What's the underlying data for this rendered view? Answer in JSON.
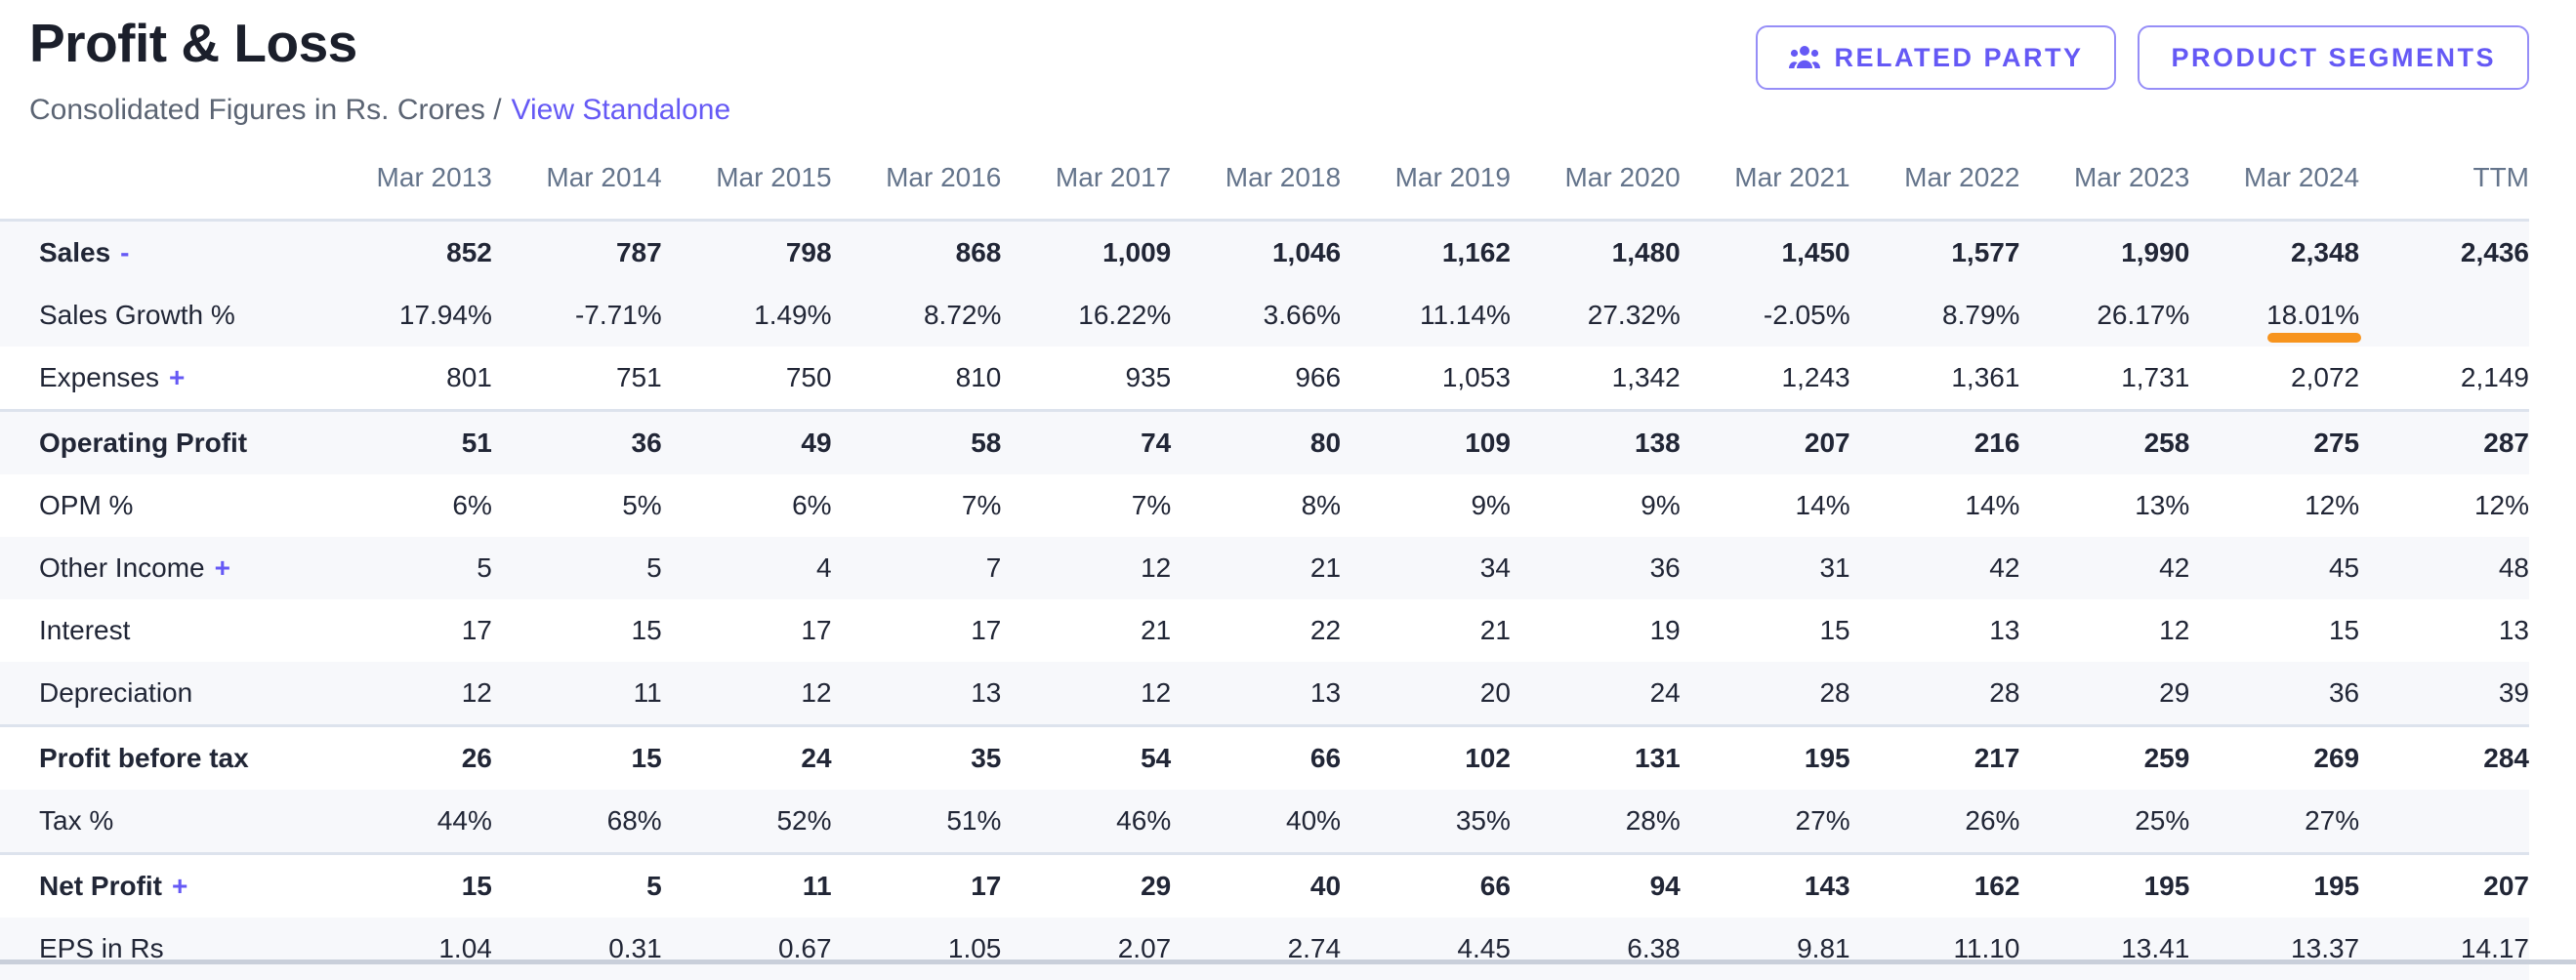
{
  "page": {
    "title": "Profit & Loss",
    "subtitle_prefix": "Consolidated Figures in Rs. Crores /",
    "standalone_link": "View Standalone"
  },
  "buttons": {
    "related_party": "RELATED PARTY",
    "product_segments": "PRODUCT SEGMENTS"
  },
  "icons": {
    "related_party_icon": "users-group-icon"
  },
  "colors": {
    "accent_purple": "#6559f5",
    "orange_underline": "#f7941e",
    "stripe_bg": "#f7f8fb",
    "separator": "#dde3ed",
    "header_text": "#64748b",
    "body_text": "#212636"
  },
  "table": {
    "columns": [
      "Mar 2013",
      "Mar 2014",
      "Mar 2015",
      "Mar 2016",
      "Mar 2017",
      "Mar 2018",
      "Mar 2019",
      "Mar 2020",
      "Mar 2021",
      "Mar 2022",
      "Mar 2023",
      "Mar 2024",
      "TTM"
    ],
    "rows": [
      {
        "label": "Sales",
        "toggle": "-",
        "bold": true,
        "stripe": true,
        "values": [
          "852",
          "787",
          "798",
          "868",
          "1,009",
          "1,046",
          "1,162",
          "1,480",
          "1,450",
          "1,577",
          "1,990",
          "2,348",
          "2,436"
        ]
      },
      {
        "label": "Sales Growth %",
        "stripe": true,
        "underline_col": 11,
        "values": [
          "17.94%",
          "-7.71%",
          "1.49%",
          "8.72%",
          "16.22%",
          "3.66%",
          "11.14%",
          "27.32%",
          "-2.05%",
          "8.79%",
          "26.17%",
          "18.01%",
          ""
        ]
      },
      {
        "label": "Expenses",
        "toggle": "+",
        "values": [
          "801",
          "751",
          "750",
          "810",
          "935",
          "966",
          "1,053",
          "1,342",
          "1,243",
          "1,361",
          "1,731",
          "2,072",
          "2,149"
        ]
      },
      {
        "label": "Operating Profit",
        "bold": true,
        "stripe": true,
        "group_start": true,
        "values": [
          "51",
          "36",
          "49",
          "58",
          "74",
          "80",
          "109",
          "138",
          "207",
          "216",
          "258",
          "275",
          "287"
        ]
      },
      {
        "label": "OPM %",
        "values": [
          "6%",
          "5%",
          "6%",
          "7%",
          "7%",
          "8%",
          "9%",
          "9%",
          "14%",
          "14%",
          "13%",
          "12%",
          "12%"
        ]
      },
      {
        "label": "Other Income",
        "toggle": "+",
        "stripe": true,
        "values": [
          "5",
          "5",
          "4",
          "7",
          "12",
          "21",
          "34",
          "36",
          "31",
          "42",
          "42",
          "45",
          "48"
        ]
      },
      {
        "label": "Interest",
        "values": [
          "17",
          "15",
          "17",
          "17",
          "21",
          "22",
          "21",
          "19",
          "15",
          "13",
          "12",
          "15",
          "13"
        ]
      },
      {
        "label": "Depreciation",
        "stripe": true,
        "values": [
          "12",
          "11",
          "12",
          "13",
          "12",
          "13",
          "20",
          "24",
          "28",
          "28",
          "29",
          "36",
          "39"
        ]
      },
      {
        "label": "Profit before tax",
        "bold": true,
        "group_start": true,
        "values": [
          "26",
          "15",
          "24",
          "35",
          "54",
          "66",
          "102",
          "131",
          "195",
          "217",
          "259",
          "269",
          "284"
        ]
      },
      {
        "label": "Tax %",
        "stripe": true,
        "values": [
          "44%",
          "68%",
          "52%",
          "51%",
          "46%",
          "40%",
          "35%",
          "28%",
          "27%",
          "26%",
          "25%",
          "27%",
          ""
        ]
      },
      {
        "label": "Net Profit",
        "toggle": "+",
        "bold": true,
        "group_start": true,
        "values": [
          "15",
          "5",
          "11",
          "17",
          "29",
          "40",
          "66",
          "94",
          "143",
          "162",
          "195",
          "195",
          "207"
        ]
      },
      {
        "label": "EPS in Rs",
        "stripe": true,
        "values": [
          "1.04",
          "0.31",
          "0.67",
          "1.05",
          "2.07",
          "2.74",
          "4.45",
          "6.38",
          "9.81",
          "11.10",
          "13.41",
          "13.37",
          "14.17"
        ]
      }
    ]
  }
}
